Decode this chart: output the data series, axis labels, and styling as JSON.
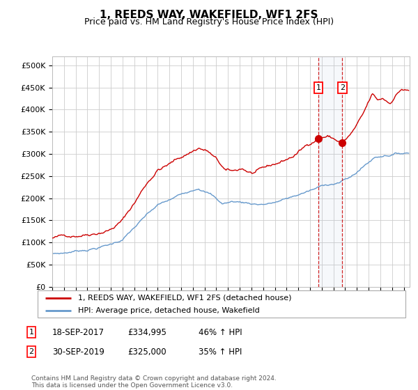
{
  "title": "1, REEDS WAY, WAKEFIELD, WF1 2FS",
  "subtitle": "Price paid vs. HM Land Registry's House Price Index (HPI)",
  "title_fontsize": 11,
  "subtitle_fontsize": 9,
  "ylim": [
    0,
    520000
  ],
  "yticks": [
    0,
    50000,
    100000,
    150000,
    200000,
    250000,
    300000,
    350000,
    400000,
    450000,
    500000
  ],
  "ytick_labels": [
    "£0",
    "£50K",
    "£100K",
    "£150K",
    "£200K",
    "£250K",
    "£300K",
    "£350K",
    "£400K",
    "£450K",
    "£500K"
  ],
  "grid_color": "#cccccc",
  "hpi_color": "#6699cc",
  "price_color": "#cc0000",
  "sale1_date_num": 2017.72,
  "sale2_date_num": 2019.75,
  "sale1_price": 334995,
  "sale2_price": 325000,
  "legend_entries": [
    "1, REEDS WAY, WAKEFIELD, WF1 2FS (detached house)",
    "HPI: Average price, detached house, Wakefield"
  ],
  "table_rows": [
    {
      "num": "1",
      "date": "18-SEP-2017",
      "price": "£334,995",
      "hpi": "46% ↑ HPI"
    },
    {
      "num": "2",
      "date": "30-SEP-2019",
      "price": "£325,000",
      "hpi": "35% ↑ HPI"
    }
  ],
  "footer": "Contains HM Land Registry data © Crown copyright and database right 2024.\nThis data is licensed under the Open Government Licence v3.0.",
  "xmin": 1995.0,
  "xmax": 2025.5
}
